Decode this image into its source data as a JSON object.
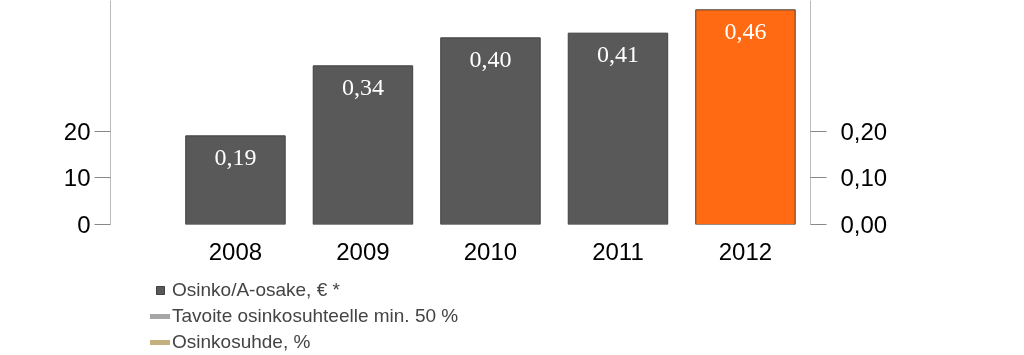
{
  "chart_data": {
    "type": "bar",
    "categories": [
      "2008",
      "2009",
      "2010",
      "2011",
      "2012"
    ],
    "series": [
      {
        "name": "Osinko/A-osake, € *",
        "axis": "y2",
        "colors": [
          "#595959",
          "#595959",
          "#595959",
          "#595959",
          "#ff6a13"
        ],
        "values": [
          0.19,
          0.34,
          0.4,
          0.41,
          0.46
        ],
        "value_labels": [
          "0,19",
          "0,34",
          "0,40",
          "0,41",
          "0,46"
        ]
      },
      {
        "name": "Tavoite osinkosuhteelle min. 50 %",
        "type": "line",
        "color": "#a6a6a6",
        "values": [
          null,
          null,
          null,
          null,
          null
        ]
      },
      {
        "name": "Osinkosuhde, %",
        "type": "line",
        "color": "#c4b07e",
        "values": [
          null,
          null,
          null,
          null,
          null
        ]
      }
    ],
    "ylim": [
      0,
      48
    ],
    "yticks": [
      0,
      10,
      20
    ],
    "y2lim": [
      0,
      0.48
    ],
    "y2ticks": [
      {
        "value": 0,
        "label": "0,00"
      },
      {
        "value": 0.1,
        "label": "0,10"
      },
      {
        "value": 0.2,
        "label": "0,20"
      }
    ],
    "grid": false,
    "legend": "bottom"
  }
}
